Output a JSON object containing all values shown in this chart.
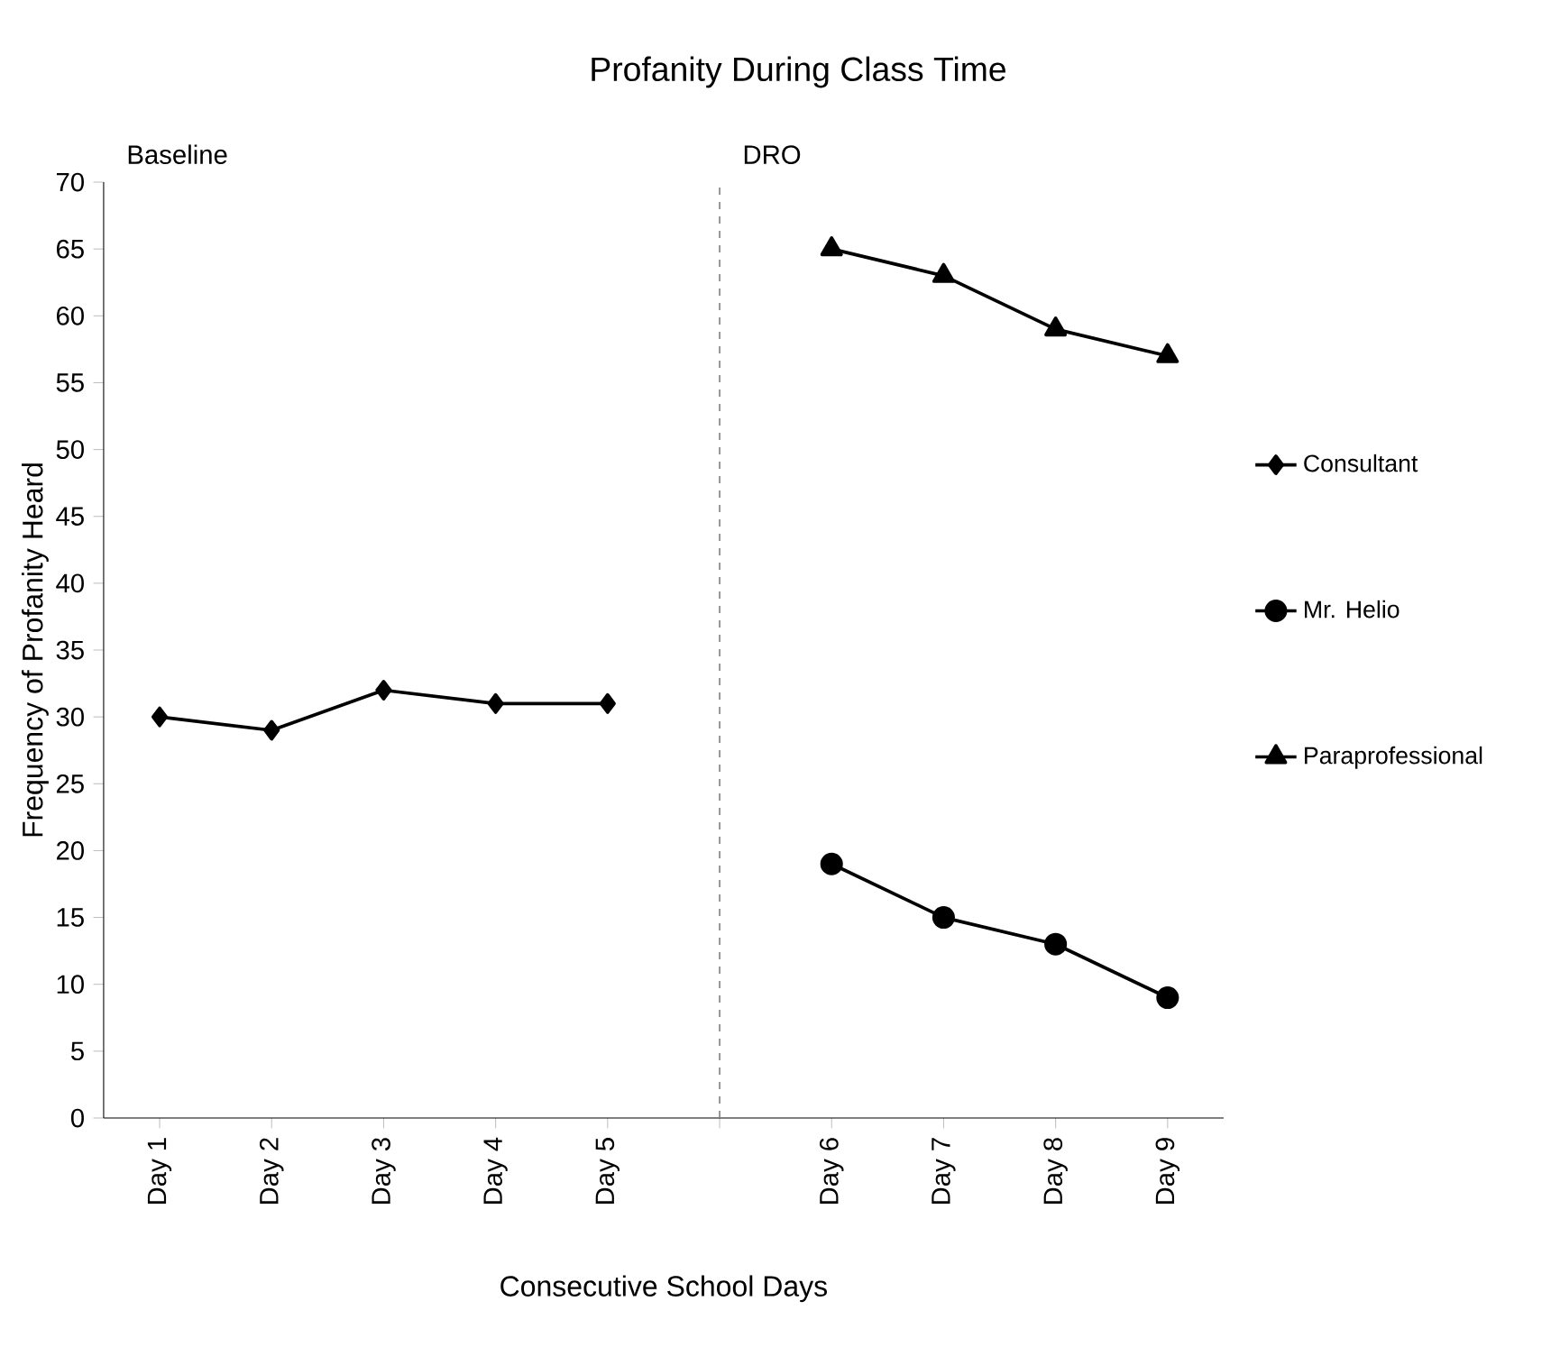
{
  "chart_data": {
    "type": "line",
    "title": "Profanity During Class Time",
    "xlabel": "Consecutive School Days",
    "ylabel": "Frequency of Profanity Heard",
    "categories": [
      "Day 1",
      "Day 2",
      "Day 3",
      "Day 4",
      "Day 5",
      null,
      "Day 6",
      "Day 7",
      "Day 8",
      "Day 9"
    ],
    "series": [
      {
        "name": "Consultant",
        "color": "#000000",
        "marker": "diamond",
        "values": [
          30,
          29,
          32,
          31,
          31,
          null,
          null,
          null,
          null,
          null
        ]
      },
      {
        "name": "Mr. Helio",
        "color": "#000000",
        "marker": "circle",
        "values": [
          null,
          null,
          null,
          null,
          null,
          null,
          19,
          15,
          13,
          9
        ]
      },
      {
        "name": "Paraprofessional",
        "color": "#000000",
        "marker": "triangle",
        "values": [
          null,
          null,
          null,
          null,
          null,
          null,
          65,
          63,
          59,
          57
        ]
      }
    ],
    "ylim": [
      0,
      70
    ],
    "yticks": [
      0,
      5,
      10,
      15,
      20,
      25,
      30,
      35,
      40,
      45,
      50,
      55,
      60,
      65,
      70
    ],
    "annotations": [
      "Baseline",
      "DRO"
    ],
    "legend": "right"
  }
}
